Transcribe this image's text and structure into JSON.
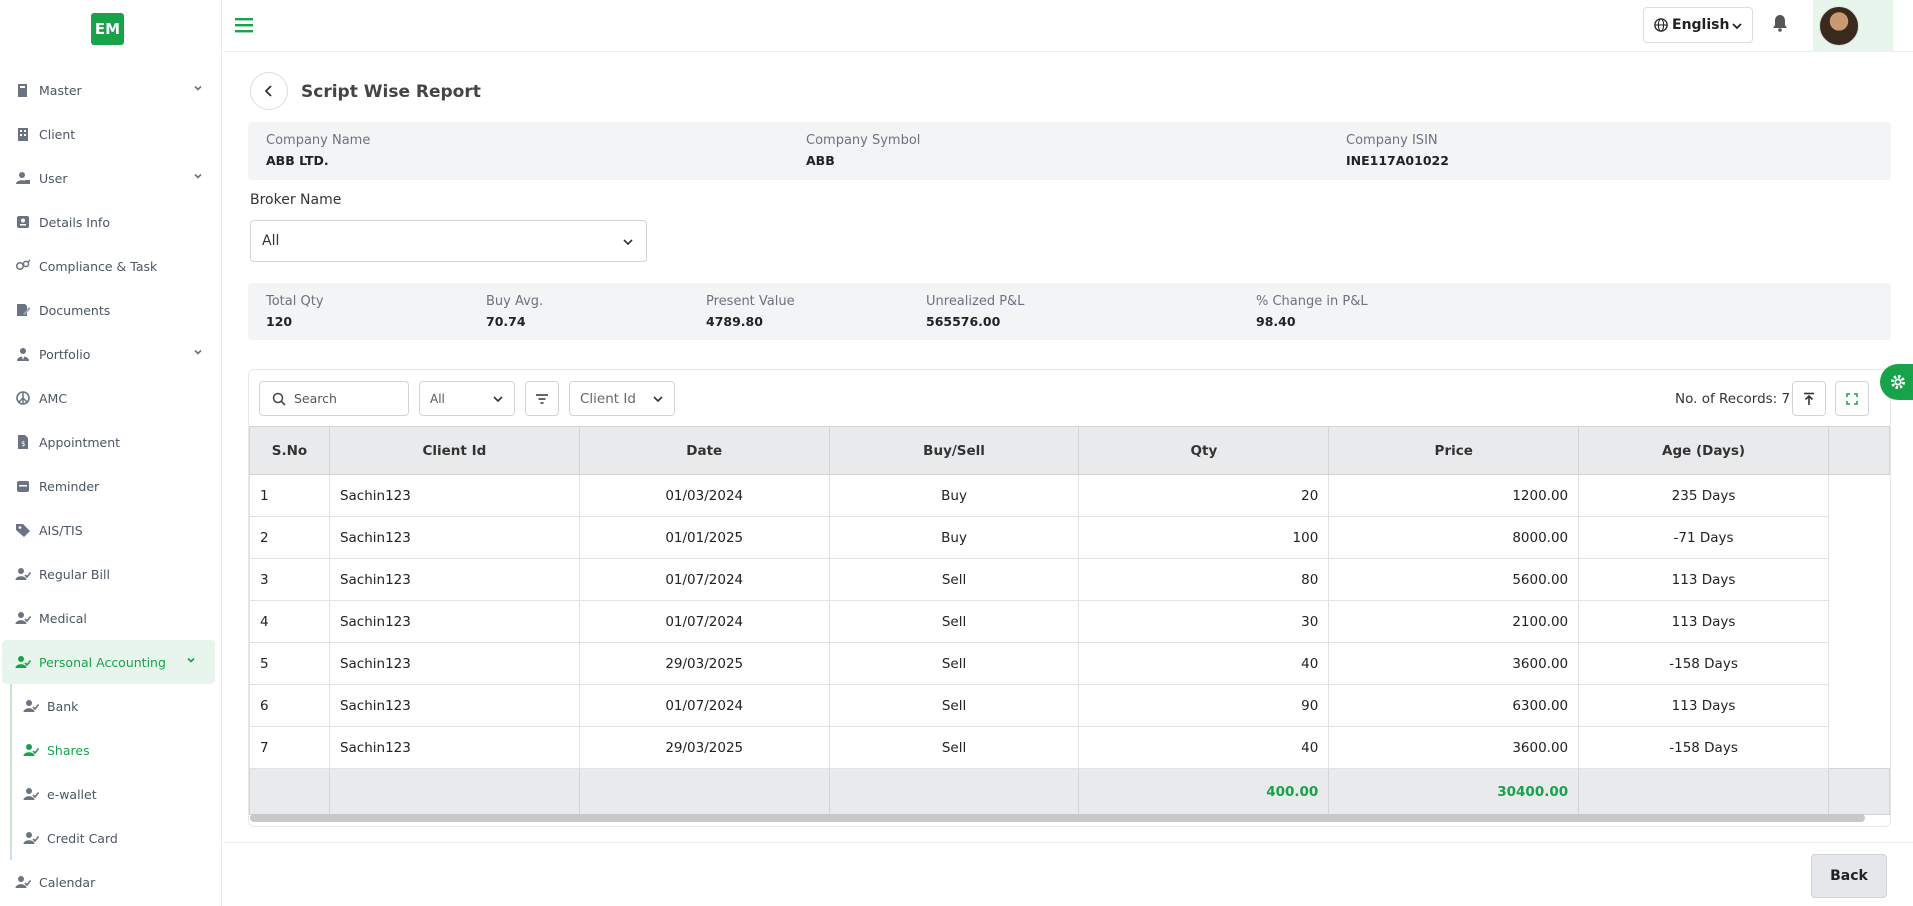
{
  "app": {
    "logo_text": "EM",
    "accent_color": "#16a34a"
  },
  "sidebar": {
    "items": [
      {
        "label": "Master",
        "icon": "book-icon",
        "has_submenu": true
      },
      {
        "label": "Client",
        "icon": "building-icon",
        "has_submenu": false
      },
      {
        "label": "User",
        "icon": "user-lock-icon",
        "has_submenu": true
      },
      {
        "label": "Details Info",
        "icon": "id-card-icon",
        "has_submenu": false
      },
      {
        "label": "Compliance & Task",
        "icon": "gender-icon",
        "has_submenu": false
      },
      {
        "label": "Documents",
        "icon": "document-edit-icon",
        "has_submenu": false
      },
      {
        "label": "Portfolio",
        "icon": "user-tie-icon",
        "has_submenu": true
      },
      {
        "label": "AMC",
        "icon": "peace-icon",
        "has_submenu": false
      },
      {
        "label": "Appointment",
        "icon": "file-invoice-icon",
        "has_submenu": false
      },
      {
        "label": "Reminder",
        "icon": "calendar-icon",
        "has_submenu": false
      },
      {
        "label": "AIS/TIS",
        "icon": "tag-icon",
        "has_submenu": false
      },
      {
        "label": "Regular Bill",
        "icon": "user-check-icon",
        "has_submenu": false
      },
      {
        "label": "Medical",
        "icon": "user-check-icon",
        "has_submenu": false
      },
      {
        "label": "Personal Accounting",
        "icon": "user-check-icon",
        "has_submenu": true,
        "active": true
      }
    ],
    "subitems": [
      {
        "label": "Bank",
        "icon": "user-check-icon"
      },
      {
        "label": "Shares",
        "icon": "user-check-icon",
        "selected": true
      },
      {
        "label": "e-wallet",
        "icon": "user-check-icon"
      },
      {
        "label": "Credit Card",
        "icon": "user-check-icon"
      }
    ],
    "after": {
      "label": "Calendar",
      "icon": "user-check-icon"
    }
  },
  "topbar": {
    "language": "English"
  },
  "page": {
    "title": "Script Wise Report"
  },
  "company": {
    "name_label": "Company Name",
    "name": "ABB LTD.",
    "symbol_label": "Company Symbol",
    "symbol": "ABB",
    "isin_label": "Company ISIN",
    "isin": "INE117A01022"
  },
  "broker": {
    "label": "Broker Name",
    "value": "All"
  },
  "stats": {
    "total_qty_label": "Total Qty",
    "total_qty": "120",
    "buy_avg_label": "Buy Avg.",
    "buy_avg": "70.74",
    "present_value_label": "Present Value",
    "present_value": "4789.80",
    "unrealized_label": "Unrealized P&L",
    "unrealized": "565576.00",
    "pct_change_label": "% Change in P&L",
    "pct_change": "98.40"
  },
  "table_toolbar": {
    "search_placeholder": "Search",
    "type_filter": "All",
    "client_filter": "Client Id",
    "records_label": "No. of Records: 7"
  },
  "table": {
    "columns": [
      "S.No",
      "Client Id",
      "Date",
      "Buy/Sell",
      "Qty",
      "Price",
      "Age (Days)"
    ],
    "rows": [
      [
        "1",
        "Sachin123",
        "01/03/2024",
        "Buy",
        "20",
        "1200.00",
        "235 Days"
      ],
      [
        "2",
        "Sachin123",
        "01/01/2025",
        "Buy",
        "100",
        "8000.00",
        "-71 Days"
      ],
      [
        "3",
        "Sachin123",
        "01/07/2024",
        "Sell",
        "80",
        "5600.00",
        "113 Days"
      ],
      [
        "4",
        "Sachin123",
        "01/07/2024",
        "Sell",
        "30",
        "2100.00",
        "113 Days"
      ],
      [
        "5",
        "Sachin123",
        "29/03/2025",
        "Sell",
        "40",
        "3600.00",
        "-158 Days"
      ],
      [
        "6",
        "Sachin123",
        "01/07/2024",
        "Sell",
        "90",
        "6300.00",
        "113 Days"
      ],
      [
        "7",
        "Sachin123",
        "29/03/2025",
        "Sell",
        "40",
        "3600.00",
        "-158 Days"
      ]
    ],
    "footer": {
      "qty_total": "400.00",
      "price_total": "30400.00"
    }
  },
  "actions": {
    "back_label": "Back"
  }
}
